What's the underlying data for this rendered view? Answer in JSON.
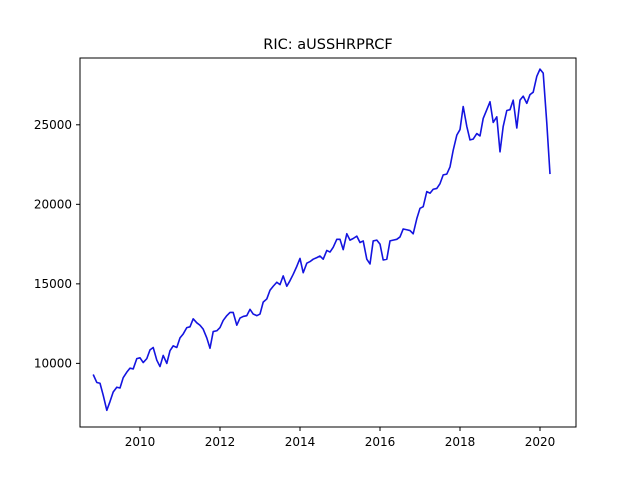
{
  "chart_data": {
    "type": "line",
    "title": "RIC: aUSSHRPRCF",
    "xlabel": "",
    "ylabel": "",
    "xlim": [
      2008.5,
      2020.9
    ],
    "ylim": [
      6000,
      29200
    ],
    "x_ticks": [
      2010,
      2012,
      2014,
      2016,
      2018,
      2020
    ],
    "x_tick_labels": [
      "2010",
      "2012",
      "2014",
      "2016",
      "2018",
      "2020"
    ],
    "y_ticks": [
      10000,
      15000,
      20000,
      25000
    ],
    "y_tick_labels": [
      "10000",
      "15000",
      "20000",
      "25000"
    ],
    "grid": false,
    "legend": "none",
    "series": [
      {
        "color": "#1414e0",
        "x": [
          2008.83,
          2008.92,
          2009.0,
          2009.08,
          2009.17,
          2009.25,
          2009.33,
          2009.42,
          2009.5,
          2009.58,
          2009.67,
          2009.75,
          2009.83,
          2009.92,
          2010.0,
          2010.08,
          2010.17,
          2010.25,
          2010.33,
          2010.42,
          2010.5,
          2010.58,
          2010.67,
          2010.75,
          2010.83,
          2010.92,
          2011.0,
          2011.08,
          2011.17,
          2011.25,
          2011.33,
          2011.42,
          2011.5,
          2011.58,
          2011.67,
          2011.75,
          2011.83,
          2011.92,
          2012.0,
          2012.08,
          2012.17,
          2012.25,
          2012.33,
          2012.42,
          2012.5,
          2012.58,
          2012.67,
          2012.75,
          2012.83,
          2012.92,
          2013.0,
          2013.08,
          2013.17,
          2013.25,
          2013.33,
          2013.42,
          2013.5,
          2013.58,
          2013.67,
          2013.75,
          2013.83,
          2013.92,
          2014.0,
          2014.08,
          2014.17,
          2014.25,
          2014.33,
          2014.42,
          2014.5,
          2014.58,
          2014.67,
          2014.75,
          2014.83,
          2014.92,
          2015.0,
          2015.08,
          2015.17,
          2015.25,
          2015.33,
          2015.42,
          2015.5,
          2015.58,
          2015.67,
          2015.75,
          2015.83,
          2015.92,
          2016.0,
          2016.08,
          2016.17,
          2016.25,
          2016.33,
          2016.42,
          2016.5,
          2016.58,
          2016.67,
          2016.75,
          2016.83,
          2016.92,
          2017.0,
          2017.08,
          2017.17,
          2017.25,
          2017.33,
          2017.42,
          2017.5,
          2017.58,
          2017.67,
          2017.75,
          2017.83,
          2017.92,
          2018.0,
          2018.08,
          2018.17,
          2018.25,
          2018.33,
          2018.42,
          2018.5,
          2018.58,
          2018.67,
          2018.75,
          2018.83,
          2018.92,
          2019.0,
          2019.08,
          2019.17,
          2019.25,
          2019.33,
          2019.42,
          2019.5,
          2019.58,
          2019.67,
          2019.75,
          2019.83,
          2019.92,
          2020.0,
          2020.08,
          2020.17,
          2020.25
        ],
        "y": [
          9300,
          8800,
          8750,
          8000,
          7050,
          7600,
          8200,
          8500,
          8450,
          9100,
          9450,
          9700,
          9650,
          10300,
          10350,
          10050,
          10300,
          10850,
          11000,
          10200,
          9800,
          10500,
          10000,
          10800,
          11100,
          11000,
          11600,
          11850,
          12250,
          12300,
          12800,
          12550,
          12400,
          12150,
          11600,
          10950,
          12000,
          12050,
          12250,
          12700,
          13000,
          13200,
          13200,
          12400,
          12850,
          12950,
          13000,
          13400,
          13100,
          13000,
          13100,
          13850,
          14050,
          14600,
          14850,
          15100,
          14950,
          15500,
          14850,
          15200,
          15600,
          16100,
          16600,
          15700,
          16300,
          16400,
          16550,
          16650,
          16750,
          16550,
          17100,
          17000,
          17300,
          17800,
          17800,
          17150,
          18150,
          17750,
          17850,
          18000,
          17600,
          17700,
          16550,
          16250,
          17700,
          17750,
          17500,
          16500,
          16550,
          17700,
          17750,
          17800,
          17950,
          18450,
          18400,
          18350,
          18150,
          19100,
          19750,
          19850,
          20800,
          20700,
          20950,
          21000,
          21300,
          21850,
          21900,
          22350,
          23400,
          24350,
          24700,
          26150,
          24900,
          24050,
          24100,
          24450,
          24300,
          25400,
          25950,
          26450,
          25150,
          25500,
          23300,
          24900,
          25900,
          25950,
          26550,
          24800,
          26550,
          26800,
          26350,
          26900,
          27050,
          28050,
          28500,
          28250,
          25100,
          21900
        ]
      }
    ]
  }
}
